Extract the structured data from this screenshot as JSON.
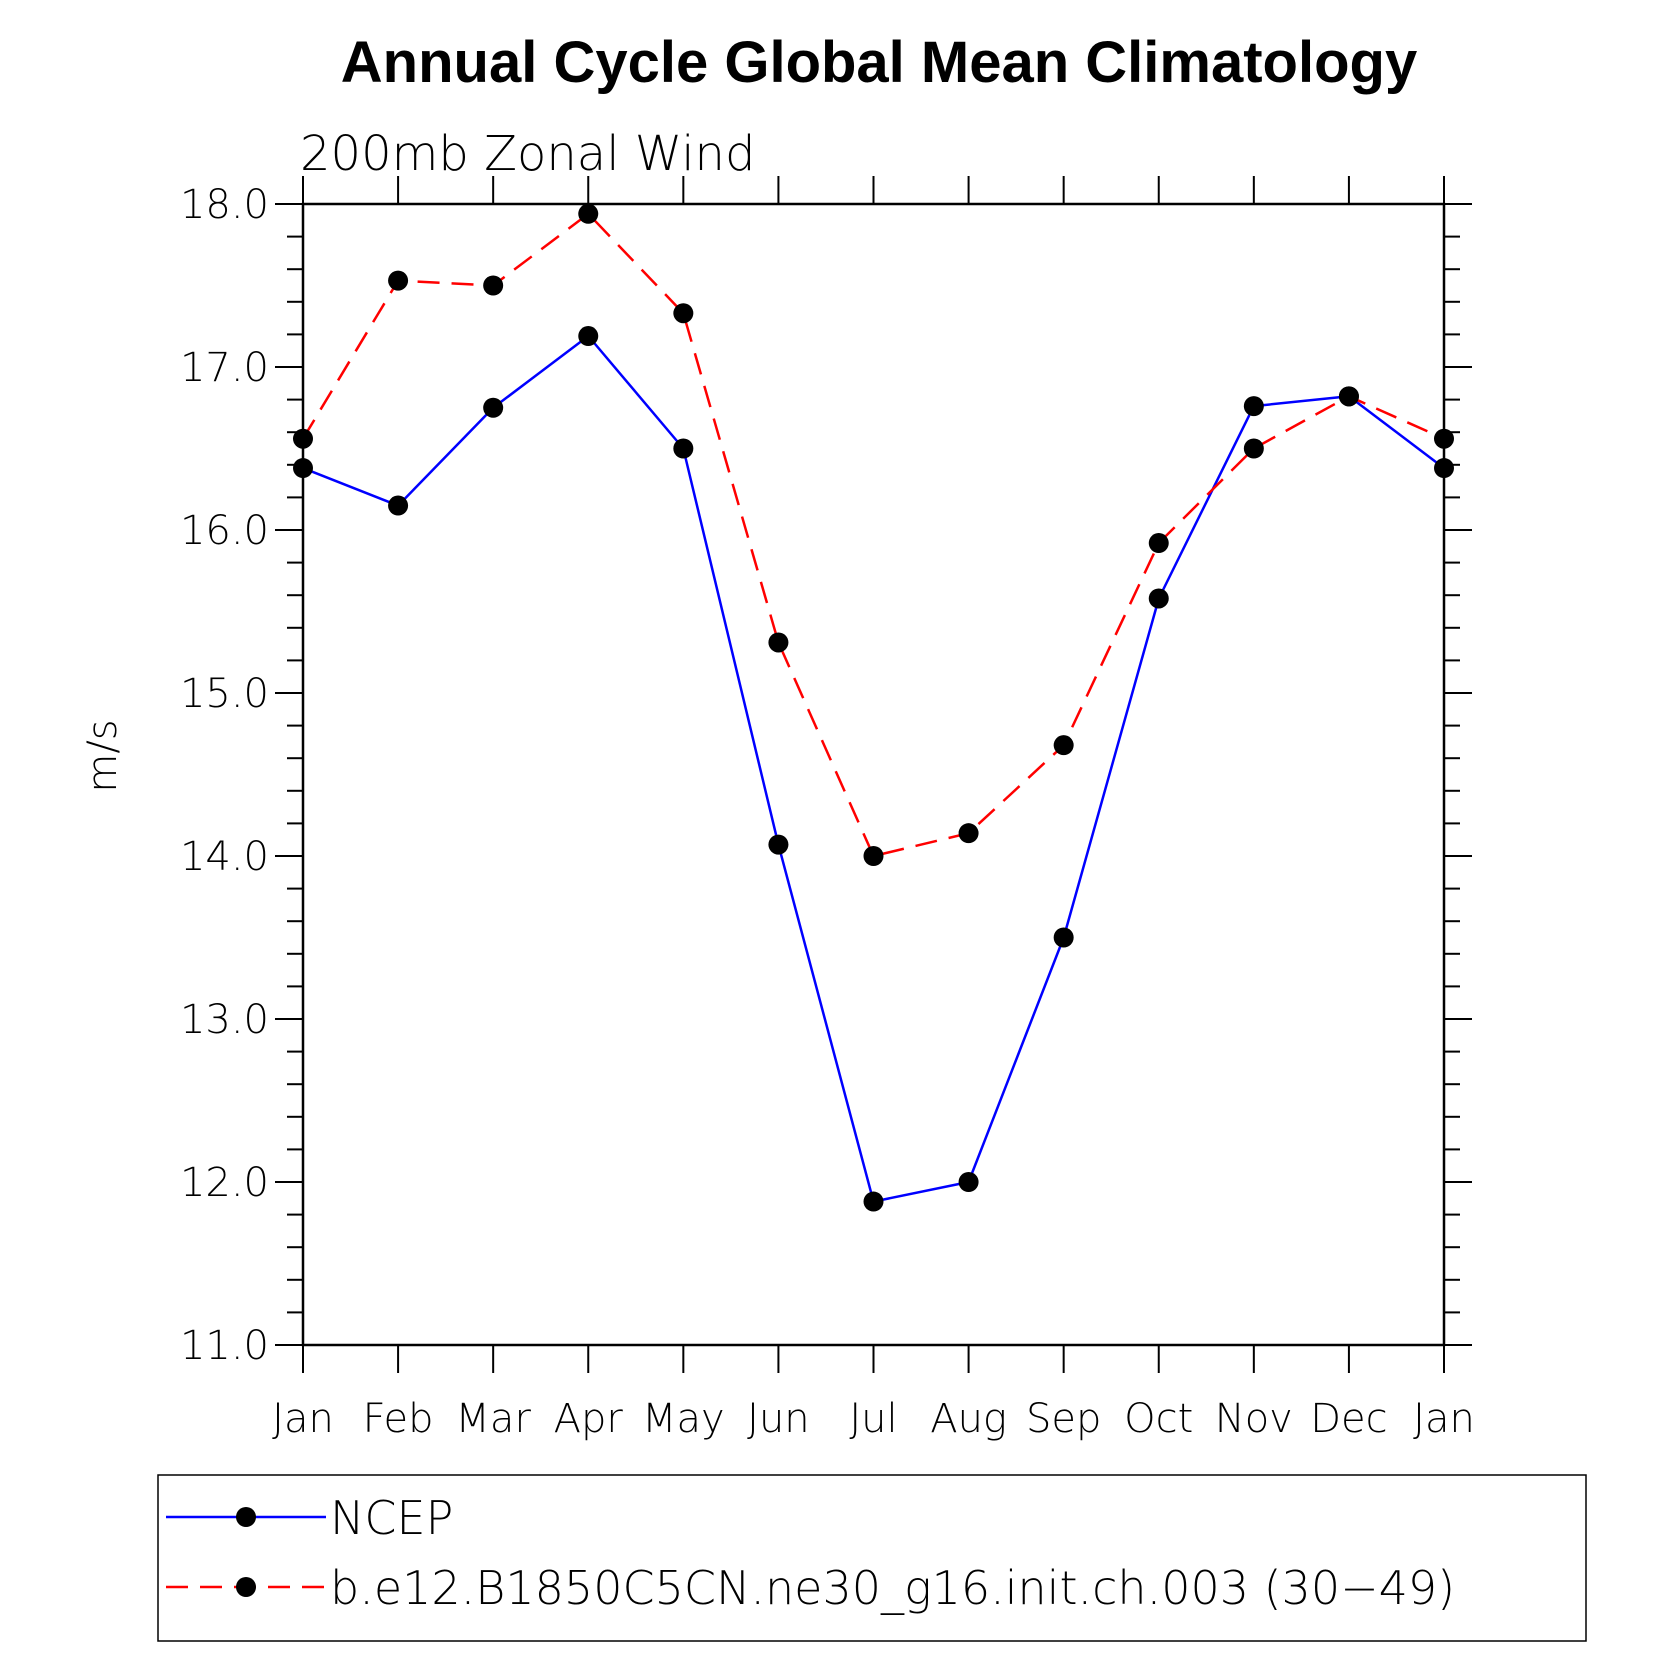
{
  "chart_data": {
    "type": "line",
    "title": "Annual Cycle Global Mean Climatology",
    "subtitle": "200mb Zonal Wind",
    "xlabel": "",
    "ylabel": "m/s",
    "ylim": [
      11.0,
      18.0
    ],
    "y_ticks": [
      "11.0",
      "12.0",
      "13.0",
      "14.0",
      "15.0",
      "16.0",
      "17.0",
      "18.0"
    ],
    "categories": [
      "Jan",
      "Feb",
      "Mar",
      "Apr",
      "May",
      "Jun",
      "Jul",
      "Aug",
      "Sep",
      "Oct",
      "Nov",
      "Dec",
      "Jan"
    ],
    "grid": false,
    "legend_position": "bottom",
    "series": [
      {
        "name": "NCEP",
        "color": "#0000ff",
        "line_style": "solid",
        "marker": "filled-circle",
        "values": [
          16.38,
          16.15,
          16.75,
          17.19,
          16.5,
          14.07,
          11.88,
          12.0,
          13.5,
          15.58,
          16.76,
          16.82,
          16.38
        ]
      },
      {
        "name": "b.e12.B1850C5CN.ne30_g16.init.ch.003 (30−49)",
        "color": "#ff0000",
        "line_style": "dashed",
        "marker": "filled-circle",
        "values": [
          16.56,
          17.53,
          17.5,
          17.94,
          17.33,
          15.31,
          14.0,
          14.14,
          14.68,
          15.92,
          16.5,
          16.82,
          16.56
        ]
      }
    ]
  }
}
